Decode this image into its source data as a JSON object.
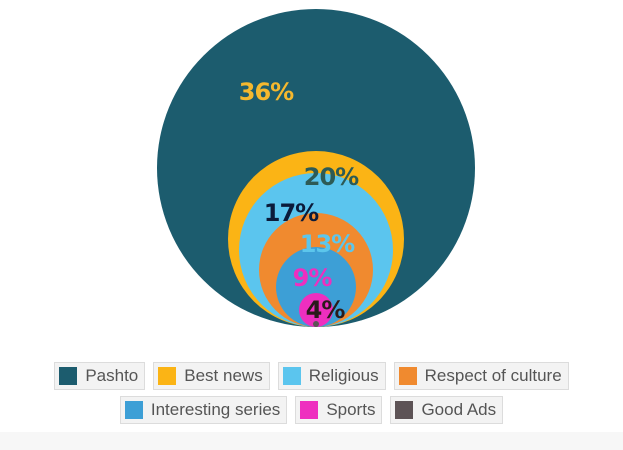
{
  "chart_data": {
    "type": "nested-circles",
    "title": "",
    "series": [
      {
        "name": "Pashto",
        "value": 36,
        "label": "36%",
        "color": "#1c5c6e",
        "label_color": "#f5b82e"
      },
      {
        "name": "Best news",
        "value": 20,
        "label": "20%",
        "color": "#fbb415",
        "label_color": "#2d5b56"
      },
      {
        "name": "Religious",
        "value": 17,
        "label": "17%",
        "color": "#5bc5ee",
        "label_color": "#0b1b3a"
      },
      {
        "name": "Respect of culture",
        "value": 13,
        "label": "13%",
        "color": "#f08a2f",
        "label_color": "#5cc6ec"
      },
      {
        "name": "Interesting series",
        "value": 9,
        "label": "9%",
        "color": "#3d9fd6",
        "label_color": "#ee2fbf"
      },
      {
        "name": "Sports",
        "value": 4,
        "label": "4%",
        "color": "#ee2fbf",
        "label_color": "#2b1a1a"
      },
      {
        "name": "Good Ads",
        "value": 1,
        "label": "",
        "color": "#5d5356",
        "label_color": "#5d5356"
      }
    ],
    "legend_position": "bottom"
  }
}
